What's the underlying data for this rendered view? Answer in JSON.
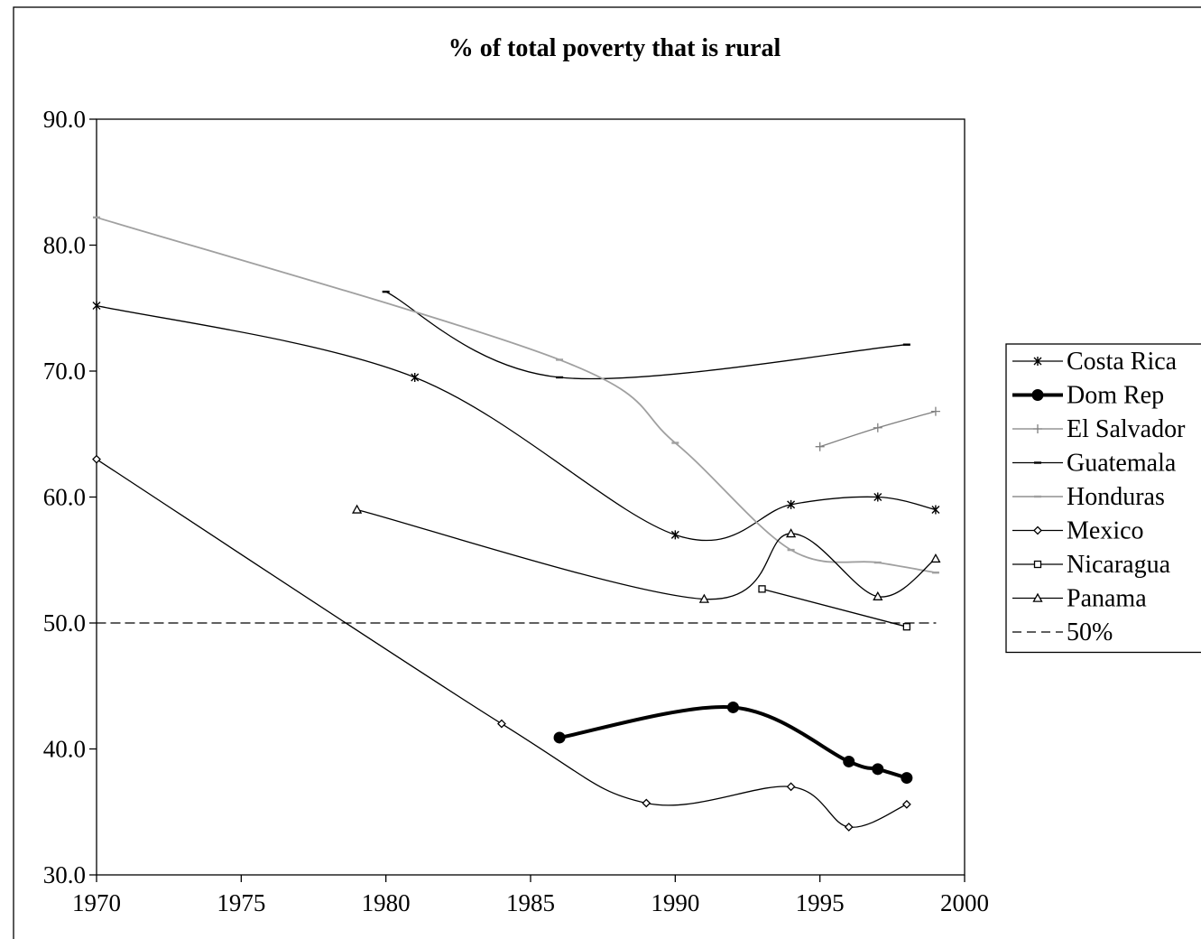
{
  "chart_data": {
    "type": "line",
    "title": "% of total poverty that is rural",
    "xlabel": "",
    "ylabel": "",
    "xlim": [
      1970,
      2000
    ],
    "ylim": [
      30,
      90
    ],
    "x_ticks": [
      "1970",
      "1975",
      "1980",
      "1985",
      "1990",
      "1995",
      "2000"
    ],
    "y_ticks": [
      "30.0",
      "40.0",
      "50.0",
      "60.0",
      "70.0",
      "80.0",
      "90.0"
    ],
    "grid": false,
    "legend_position": "right",
    "series": [
      {
        "name": "Costa Rica",
        "marker": "star",
        "color": "#000000",
        "width": 1.3,
        "dash": "",
        "points": [
          [
            1970,
            75.2
          ],
          [
            1981,
            69.5
          ],
          [
            1990,
            57.0
          ],
          [
            1994,
            59.4
          ],
          [
            1997,
            60.0
          ],
          [
            1999,
            59.0
          ]
        ]
      },
      {
        "name": "Dom Rep",
        "marker": "dot",
        "color": "#000000",
        "width": 4,
        "dash": "",
        "points": [
          [
            1986,
            40.9
          ],
          [
            1992,
            43.3
          ],
          [
            1996,
            39.0
          ],
          [
            1997,
            38.4
          ],
          [
            1998,
            37.7
          ]
        ]
      },
      {
        "name": "El Salvador",
        "marker": "plus",
        "color": "#808080",
        "width": 1.3,
        "dash": "",
        "points": [
          [
            1995,
            64.0
          ],
          [
            1997,
            65.5
          ],
          [
            1999,
            66.8
          ]
        ]
      },
      {
        "name": "Guatemala",
        "marker": "dash",
        "color": "#000000",
        "width": 1.3,
        "dash": "",
        "points": [
          [
            1980,
            76.3
          ],
          [
            1986,
            69.5
          ],
          [
            1998,
            72.1
          ]
        ]
      },
      {
        "name": "Honduras",
        "marker": "dash",
        "color": "#a0a0a0",
        "width": 1.8,
        "dash": "",
        "points": [
          [
            1970,
            82.2
          ],
          [
            1986,
            70.9
          ],
          [
            1990,
            64.3
          ],
          [
            1994,
            55.8
          ],
          [
            1997,
            54.8
          ],
          [
            1999,
            54.0
          ]
        ]
      },
      {
        "name": "Mexico",
        "marker": "diamond",
        "color": "#000000",
        "width": 1.3,
        "dash": "",
        "points": [
          [
            1970,
            63.0
          ],
          [
            1984,
            42.0
          ],
          [
            1989,
            35.7
          ],
          [
            1994,
            37.0
          ],
          [
            1996,
            33.8
          ],
          [
            1998,
            35.6
          ]
        ]
      },
      {
        "name": "Nicaragua",
        "marker": "square",
        "color": "#000000",
        "width": 1.3,
        "dash": "",
        "points": [
          [
            1993,
            52.7
          ],
          [
            1998,
            49.7
          ]
        ]
      },
      {
        "name": "Panama",
        "marker": "triangle",
        "color": "#000000",
        "width": 1.3,
        "dash": "",
        "points": [
          [
            1979,
            59.0
          ],
          [
            1991,
            51.9
          ],
          [
            1994,
            57.1
          ],
          [
            1997,
            52.1
          ],
          [
            1999,
            55.1
          ]
        ]
      },
      {
        "name": "50%",
        "marker": "none",
        "color": "#000000",
        "width": 1.3,
        "dash": "10,6",
        "points": [
          [
            1970,
            50.0
          ],
          [
            1999,
            50.0
          ]
        ]
      }
    ]
  }
}
